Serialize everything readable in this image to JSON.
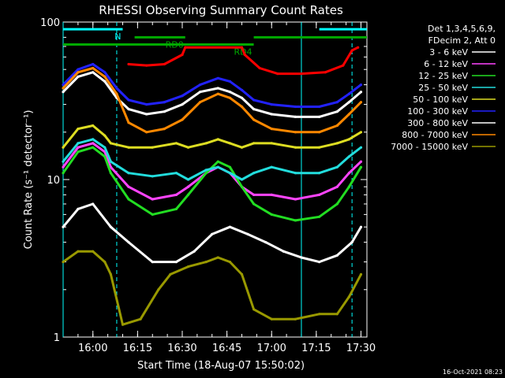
{
  "chart_data": {
    "type": "line",
    "title": "RHESSI Observing Summary Count Rates",
    "xlabel": "Start Time (18-Aug-07 15:50:02)",
    "ylabel": "Count Rate (s⁻¹ detector⁻¹)",
    "yscale": "log",
    "xlim": [
      0,
      102
    ],
    "ylim": [
      1,
      100
    ],
    "x_ticks": [
      {
        "t": 10,
        "label": "16:00"
      },
      {
        "t": 25,
        "label": "16:15"
      },
      {
        "t": 40,
        "label": "16:30"
      },
      {
        "t": 55,
        "label": "16:45"
      },
      {
        "t": 70,
        "label": "17:00"
      },
      {
        "t": 85,
        "label": "17:15"
      },
      {
        "t": 100,
        "label": "17:30"
      }
    ],
    "y_ticks": [
      {
        "v": 1,
        "label": "1"
      },
      {
        "v": 10,
        "label": "10"
      },
      {
        "v": 100,
        "label": "100"
      }
    ],
    "legend": {
      "header": [
        "Det 1,3,4,5,6,9,",
        "FDecim 2, Att 0"
      ],
      "placement": "right"
    },
    "series": [
      {
        "name": "3 - 6 keV",
        "color": "#ffffff",
        "points": [
          [
            0,
            5
          ],
          [
            5,
            6.5
          ],
          [
            10,
            7
          ],
          [
            16,
            5
          ],
          [
            22,
            4
          ],
          [
            30,
            3
          ],
          [
            38,
            3
          ],
          [
            44,
            3.5
          ],
          [
            50,
            4.5
          ],
          [
            56,
            5
          ],
          [
            62,
            4.5
          ],
          [
            68,
            4
          ],
          [
            74,
            3.5
          ],
          [
            80,
            3.2
          ],
          [
            86,
            3
          ],
          [
            92,
            3.3
          ],
          [
            97,
            4
          ],
          [
            100,
            5
          ]
        ]
      },
      {
        "name": "6 - 12 keV",
        "color": "#ff44ff",
        "points": [
          [
            0,
            12
          ],
          [
            5,
            16
          ],
          [
            10,
            17
          ],
          [
            14,
            15
          ],
          [
            16,
            12
          ],
          [
            22,
            9
          ],
          [
            30,
            7.5
          ],
          [
            38,
            8
          ],
          [
            42,
            9
          ],
          [
            48,
            11
          ],
          [
            52,
            12
          ],
          [
            56,
            11
          ],
          [
            60,
            9
          ],
          [
            64,
            8
          ],
          [
            70,
            8
          ],
          [
            78,
            7.5
          ],
          [
            86,
            8
          ],
          [
            92,
            9
          ],
          [
            96,
            11
          ],
          [
            100,
            13
          ]
        ]
      },
      {
        "name": "12 - 25 keV",
        "color": "#22dd22",
        "points": [
          [
            0,
            11
          ],
          [
            5,
            15
          ],
          [
            10,
            16
          ],
          [
            14,
            14
          ],
          [
            16,
            11
          ],
          [
            22,
            7.5
          ],
          [
            30,
            6
          ],
          [
            38,
            6.5
          ],
          [
            42,
            8
          ],
          [
            48,
            11
          ],
          [
            52,
            13
          ],
          [
            56,
            12
          ],
          [
            60,
            9
          ],
          [
            64,
            7
          ],
          [
            70,
            6
          ],
          [
            78,
            5.5
          ],
          [
            86,
            5.8
          ],
          [
            92,
            7
          ],
          [
            96,
            9
          ],
          [
            100,
            12
          ]
        ]
      },
      {
        "name": "25 - 50 keV",
        "color": "#22dddd",
        "points": [
          [
            0,
            13
          ],
          [
            5,
            17
          ],
          [
            10,
            18
          ],
          [
            14,
            16
          ],
          [
            16,
            13
          ],
          [
            22,
            11
          ],
          [
            30,
            10.5
          ],
          [
            38,
            11
          ],
          [
            42,
            10
          ],
          [
            48,
            11.5
          ],
          [
            52,
            12
          ],
          [
            56,
            11
          ],
          [
            60,
            10
          ],
          [
            64,
            11
          ],
          [
            70,
            12
          ],
          [
            78,
            11
          ],
          [
            86,
            11
          ],
          [
            92,
            12
          ],
          [
            96,
            14
          ],
          [
            100,
            16
          ]
        ]
      },
      {
        "name": "50 - 100 keV",
        "color": "#dddd22",
        "points": [
          [
            0,
            16
          ],
          [
            5,
            21
          ],
          [
            10,
            22
          ],
          [
            14,
            19
          ],
          [
            16,
            17
          ],
          [
            22,
            16
          ],
          [
            30,
            16
          ],
          [
            38,
            17
          ],
          [
            42,
            16
          ],
          [
            48,
            17
          ],
          [
            52,
            18
          ],
          [
            56,
            17
          ],
          [
            60,
            16
          ],
          [
            64,
            17
          ],
          [
            70,
            17
          ],
          [
            78,
            16
          ],
          [
            86,
            16
          ],
          [
            92,
            17
          ],
          [
            96,
            18
          ],
          [
            100,
            20
          ]
        ]
      },
      {
        "name": "100 - 300 keV",
        "color": "#2222ff",
        "points": [
          [
            0,
            40
          ],
          [
            5,
            50
          ],
          [
            10,
            54
          ],
          [
            14,
            48
          ],
          [
            18,
            38
          ],
          [
            22,
            32
          ],
          [
            28,
            30
          ],
          [
            34,
            31
          ],
          [
            40,
            34
          ],
          [
            46,
            40
          ],
          [
            52,
            44
          ],
          [
            56,
            42
          ],
          [
            60,
            37
          ],
          [
            64,
            32
          ],
          [
            70,
            30
          ],
          [
            78,
            29
          ],
          [
            86,
            29
          ],
          [
            92,
            31
          ],
          [
            96,
            35
          ],
          [
            100,
            40
          ]
        ]
      },
      {
        "name": "300 - 800 keV",
        "color": "#ffffff",
        "points": [
          [
            0,
            36
          ],
          [
            5,
            45
          ],
          [
            10,
            48
          ],
          [
            14,
            42
          ],
          [
            18,
            33
          ],
          [
            22,
            28
          ],
          [
            28,
            26
          ],
          [
            34,
            27
          ],
          [
            40,
            30
          ],
          [
            46,
            36
          ],
          [
            52,
            38
          ],
          [
            56,
            36
          ],
          [
            60,
            33
          ],
          [
            64,
            28
          ],
          [
            70,
            26
          ],
          [
            78,
            25
          ],
          [
            86,
            25
          ],
          [
            92,
            27
          ],
          [
            96,
            31
          ],
          [
            100,
            36
          ]
        ]
      },
      {
        "name": "800 - 7000 keV",
        "color": "#ff8800",
        "points": [
          [
            0,
            38
          ],
          [
            5,
            48
          ],
          [
            10,
            51
          ],
          [
            14,
            45
          ],
          [
            18,
            35
          ],
          [
            22,
            23
          ],
          [
            28,
            20
          ],
          [
            34,
            21
          ],
          [
            40,
            24
          ],
          [
            46,
            31
          ],
          [
            52,
            35
          ],
          [
            56,
            33
          ],
          [
            60,
            29
          ],
          [
            64,
            24
          ],
          [
            70,
            21
          ],
          [
            78,
            20
          ],
          [
            86,
            20
          ],
          [
            92,
            22
          ],
          [
            96,
            26
          ],
          [
            100,
            31
          ]
        ]
      },
      {
        "name": "7000 - 15000 keV",
        "color": "#999900",
        "points": [
          [
            0,
            3
          ],
          [
            5,
            3.5
          ],
          [
            10,
            3.5
          ],
          [
            14,
            3
          ],
          [
            16,
            2.5
          ],
          [
            20,
            1.2
          ],
          [
            26,
            1.3
          ],
          [
            32,
            2
          ],
          [
            36,
            2.5
          ],
          [
            42,
            2.8
          ],
          [
            48,
            3
          ],
          [
            52,
            3.2
          ],
          [
            56,
            3
          ],
          [
            60,
            2.5
          ],
          [
            64,
            1.5
          ],
          [
            70,
            1.3
          ],
          [
            78,
            1.3
          ],
          [
            86,
            1.4
          ],
          [
            92,
            1.4
          ],
          [
            96,
            1.8
          ],
          [
            100,
            2.5
          ]
        ]
      },
      {
        "name": "",
        "color": "#ff0000",
        "points": [
          [
            22,
            54
          ],
          [
            28,
            53
          ],
          [
            34,
            54
          ],
          [
            40,
            62
          ],
          [
            41,
            69
          ],
          [
            60,
            69
          ],
          [
            61,
            62
          ],
          [
            66,
            51
          ],
          [
            72,
            47
          ],
          [
            80,
            47
          ],
          [
            88,
            48
          ],
          [
            94,
            53
          ],
          [
            97,
            66
          ],
          [
            99,
            69
          ]
        ]
      }
    ],
    "annotations": [
      {
        "label": "N",
        "color": "#00ffff",
        "t_start": 0,
        "t_end": 20,
        "value": 90
      },
      {
        "label": "",
        "color": "#00ffff",
        "t_start": 86,
        "t_end": 102,
        "value": 90
      },
      {
        "label": "RD0",
        "color": "#00aa00",
        "t_start": 24,
        "t_end": 41,
        "value": 80
      },
      {
        "label": "",
        "color": "#00aa00",
        "t_start": 64,
        "t_end": 102,
        "value": 80
      },
      {
        "label": "RD4",
        "color": "#00aa00",
        "t_start": 0,
        "t_end": 64,
        "value": 72
      }
    ],
    "vlines": [
      {
        "t": 0,
        "style": "solid",
        "color": "#00ffff"
      },
      {
        "t": 18,
        "style": "dashed",
        "color": "#00ffff"
      },
      {
        "t": 80,
        "style": "solid",
        "color": "#00ffff"
      },
      {
        "t": 97,
        "style": "dashed",
        "color": "#00ffff"
      }
    ]
  },
  "footer": {
    "date": "16-Oct-2021 08:23"
  }
}
